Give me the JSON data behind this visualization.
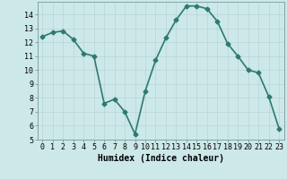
{
  "title": "",
  "xlabel": "Humidex (Indice chaleur)",
  "ylabel": "",
  "x": [
    0,
    1,
    2,
    3,
    4,
    5,
    6,
    7,
    8,
    9,
    10,
    11,
    12,
    13,
    14,
    15,
    16,
    17,
    18,
    19,
    20,
    21,
    22,
    23
  ],
  "y": [
    12.4,
    12.7,
    12.8,
    12.2,
    11.2,
    11.0,
    7.6,
    7.9,
    7.0,
    5.4,
    8.5,
    10.7,
    12.3,
    13.6,
    14.6,
    14.6,
    14.4,
    13.5,
    11.9,
    11.0,
    10.0,
    9.8,
    8.1,
    5.8
  ],
  "line_color": "#2d7a6e",
  "marker": "D",
  "marker_size": 2.5,
  "bg_color": "#cce8e8",
  "grid_color": "#b8d4d4",
  "ylim": [
    5,
    14.9
  ],
  "xlim": [
    -0.5,
    23.5
  ],
  "yticks": [
    5,
    6,
    7,
    8,
    9,
    10,
    11,
    12,
    13,
    14
  ],
  "xticks": [
    0,
    1,
    2,
    3,
    4,
    5,
    6,
    7,
    8,
    9,
    10,
    11,
    12,
    13,
    14,
    15,
    16,
    17,
    18,
    19,
    20,
    21,
    22,
    23
  ],
  "tick_fontsize": 6,
  "xlabel_fontsize": 7,
  "linewidth": 1.2
}
